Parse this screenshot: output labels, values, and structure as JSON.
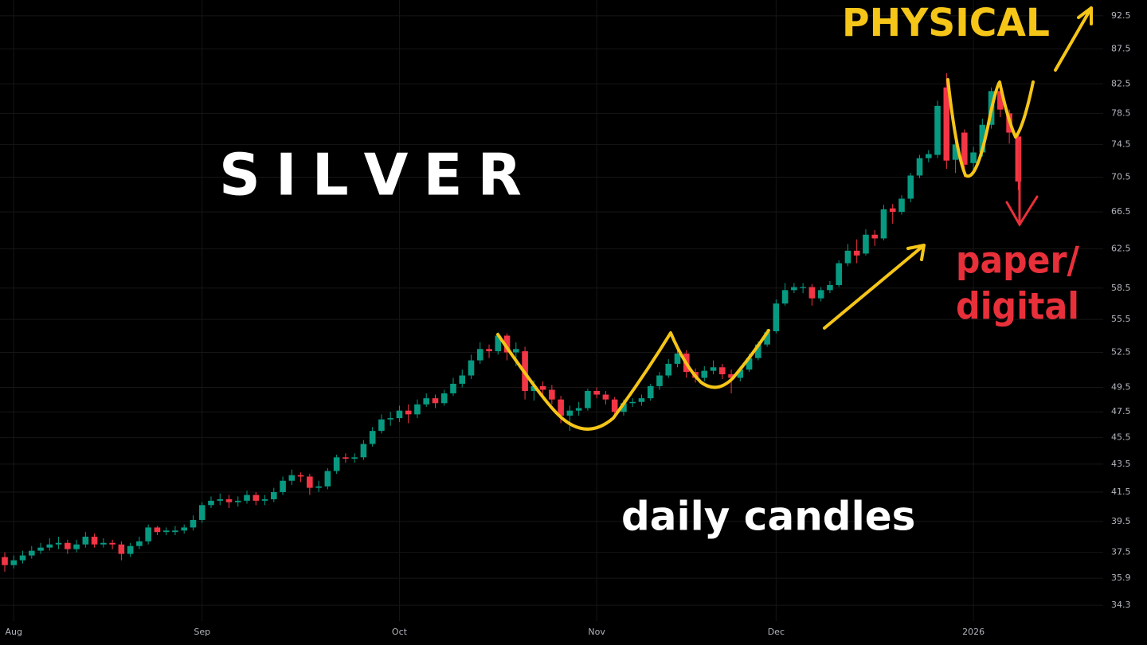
{
  "chart_data": {
    "type": "candlestick",
    "title": "S I L V E R",
    "annotations": [
      "daily candles",
      "PHYSICAL",
      "paper/",
      "digital"
    ],
    "up_color": "#089981",
    "down_color": "#f23645",
    "log_scale": true,
    "grid": true,
    "categories": [
      null,
      "Aug",
      null,
      null,
      null,
      null,
      null,
      null,
      null,
      null,
      null,
      null,
      null,
      null,
      null,
      null,
      null,
      null,
      null,
      null,
      null,
      null,
      "Sep",
      null,
      null,
      null,
      null,
      null,
      null,
      null,
      null,
      null,
      null,
      null,
      null,
      null,
      null,
      null,
      null,
      null,
      null,
      null,
      null,
      null,
      "Oct",
      null,
      null,
      null,
      null,
      null,
      null,
      null,
      null,
      null,
      null,
      null,
      null,
      null,
      null,
      null,
      null,
      null,
      null,
      null,
      null,
      null,
      "Nov",
      null,
      null,
      null,
      null,
      null,
      null,
      null,
      null,
      null,
      null,
      null,
      null,
      null,
      null,
      null,
      null,
      null,
      null,
      null,
      "Dec",
      null,
      null,
      null,
      null,
      null,
      null,
      null,
      null,
      null,
      null,
      null,
      null,
      null,
      null,
      null,
      null,
      null,
      null,
      null,
      null,
      null,
      "2026",
      null,
      null,
      null,
      null,
      null
    ],
    "open": [
      37.2,
      36.7,
      37.0,
      37.3,
      37.6,
      37.8,
      38.0,
      38.1,
      37.7,
      38.0,
      38.5,
      38.0,
      38.1,
      38.0,
      37.4,
      37.9,
      38.2,
      39.1,
      38.8,
      38.8,
      38.9,
      39.1,
      39.6,
      40.6,
      40.9,
      41.0,
      40.8,
      40.9,
      41.3,
      40.9,
      41.0,
      41.5,
      42.3,
      42.7,
      42.6,
      41.8,
      41.9,
      43.0,
      44.0,
      43.9,
      44.0,
      45.0,
      46.0,
      46.9,
      47.0,
      47.6,
      47.3,
      48.1,
      48.6,
      48.2,
      49.0,
      49.8,
      50.5,
      51.8,
      52.8,
      52.6,
      54.0,
      52.5,
      52.6,
      49.2,
      49.6,
      49.3,
      48.5,
      47.2,
      47.6,
      47.8,
      49.2,
      48.9,
      48.5,
      47.5,
      48.2,
      48.3,
      48.6,
      49.6,
      50.5,
      51.5,
      52.4,
      50.8,
      50.3,
      50.9,
      51.2,
      50.6,
      50.3,
      51.0,
      52.0,
      53.2,
      54.4,
      57.0,
      58.3,
      58.5,
      58.6,
      57.5,
      58.3,
      58.8,
      61.0,
      62.3,
      62.0,
      64.0,
      63.6,
      66.9,
      66.5,
      68.0,
      70.7,
      72.8,
      73.2,
      82.0,
      72.6,
      76.0,
      72.2,
      73.5,
      77.0,
      81.5,
      78.5,
      75.5
    ],
    "high": [
      37.5,
      37.3,
      37.6,
      37.9,
      38.1,
      38.4,
      38.5,
      38.3,
      38.3,
      38.8,
      38.7,
      38.4,
      38.3,
      38.2,
      38.1,
      38.5,
      39.3,
      39.2,
      39.1,
      39.2,
      39.3,
      39.9,
      40.8,
      41.2,
      41.4,
      41.3,
      41.2,
      41.6,
      41.5,
      41.3,
      41.8,
      42.6,
      43.1,
      42.9,
      42.8,
      42.3,
      43.2,
      44.2,
      44.3,
      44.3,
      45.3,
      46.3,
      47.3,
      47.5,
      48.0,
      48.1,
      48.5,
      49.0,
      48.9,
      49.3,
      50.3,
      51.0,
      52.3,
      53.4,
      53.2,
      54.3,
      54.2,
      53.4,
      53.0,
      50.1,
      50.0,
      49.7,
      48.8,
      48.0,
      48.3,
      49.4,
      49.5,
      49.2,
      48.7,
      48.5,
      48.6,
      48.9,
      49.8,
      50.8,
      51.9,
      53.0,
      52.7,
      51.1,
      51.3,
      51.8,
      51.5,
      51.0,
      51.3,
      52.4,
      53.5,
      54.6,
      57.4,
      59.0,
      59.0,
      59.0,
      58.9,
      58.6,
      59.2,
      61.3,
      63.0,
      63.5,
      64.6,
      64.5,
      67.3,
      67.4,
      68.4,
      71.0,
      73.2,
      73.8,
      80.2,
      84.0,
      76.0,
      76.4,
      74.2,
      77.8,
      82.0,
      82.5,
      79.0,
      76.0
    ],
    "low": [
      36.3,
      36.5,
      36.8,
      37.1,
      37.4,
      37.6,
      37.7,
      37.4,
      37.5,
      37.8,
      37.8,
      37.8,
      37.7,
      37.0,
      37.2,
      37.7,
      38.0,
      38.6,
      38.6,
      38.6,
      38.7,
      38.9,
      39.4,
      40.4,
      40.6,
      40.4,
      40.5,
      40.7,
      40.6,
      40.6,
      40.8,
      41.3,
      42.0,
      42.2,
      41.3,
      41.5,
      41.7,
      42.8,
      43.6,
      43.6,
      43.8,
      44.8,
      45.8,
      46.4,
      46.7,
      46.6,
      47.0,
      47.9,
      47.8,
      48.0,
      48.8,
      49.5,
      50.2,
      51.5,
      52.0,
      52.3,
      51.8,
      51.3,
      48.5,
      48.4,
      48.8,
      48.1,
      46.6,
      46.0,
      47.2,
      47.6,
      48.6,
      48.1,
      47.1,
      47.2,
      47.9,
      48.0,
      48.4,
      49.3,
      50.3,
      51.2,
      50.3,
      49.9,
      50.0,
      50.6,
      50.2,
      49.0,
      50.0,
      50.8,
      51.8,
      53.0,
      54.2,
      56.8,
      58.0,
      58.0,
      56.8,
      57.2,
      58.0,
      58.6,
      60.7,
      61.0,
      61.8,
      62.8,
      63.4,
      65.2,
      66.2,
      67.6,
      70.4,
      72.3,
      72.8,
      71.5,
      71.0,
      70.5,
      71.3,
      73.0,
      76.5,
      78.0,
      74.6,
      69.0
    ],
    "close": [
      36.7,
      37.0,
      37.3,
      37.6,
      37.8,
      38.0,
      38.1,
      37.7,
      38.0,
      38.5,
      38.0,
      38.1,
      38.0,
      37.4,
      37.9,
      38.2,
      39.1,
      38.8,
      38.9,
      38.9,
      39.1,
      39.6,
      40.6,
      40.9,
      41.0,
      40.8,
      40.9,
      41.3,
      40.9,
      41.0,
      41.5,
      42.3,
      42.7,
      42.6,
      41.8,
      41.9,
      43.0,
      44.0,
      43.9,
      44.0,
      45.0,
      46.0,
      46.9,
      47.0,
      47.6,
      47.3,
      48.1,
      48.6,
      48.2,
      49.0,
      49.8,
      50.5,
      51.8,
      52.8,
      52.6,
      54.0,
      52.5,
      52.8,
      49.2,
      49.6,
      49.3,
      48.5,
      47.2,
      47.6,
      47.8,
      49.2,
      48.9,
      48.5,
      47.5,
      48.2,
      48.3,
      48.6,
      49.6,
      50.5,
      51.5,
      52.4,
      50.8,
      50.3,
      50.9,
      51.2,
      50.6,
      50.3,
      51.0,
      52.0,
      53.2,
      54.3,
      57.0,
      58.3,
      58.6,
      58.6,
      57.5,
      58.3,
      58.8,
      61.0,
      62.3,
      61.8,
      64.0,
      63.6,
      66.8,
      66.5,
      68.0,
      70.7,
      72.8,
      73.3,
      79.5,
      72.5,
      74.5,
      72.0,
      73.5,
      77.0,
      81.5,
      79.0,
      76.0,
      70.0
    ],
    "ylim": [
      33.4,
      95.0
    ],
    "yticks": [
      92.5,
      87.5,
      82.5,
      78.5,
      74.5,
      70.5,
      66.5,
      62.5,
      58.5,
      55.5,
      52.5,
      49.5,
      47.5,
      45.5,
      43.5,
      41.5,
      39.5,
      37.5,
      35.9,
      34.3
    ]
  }
}
